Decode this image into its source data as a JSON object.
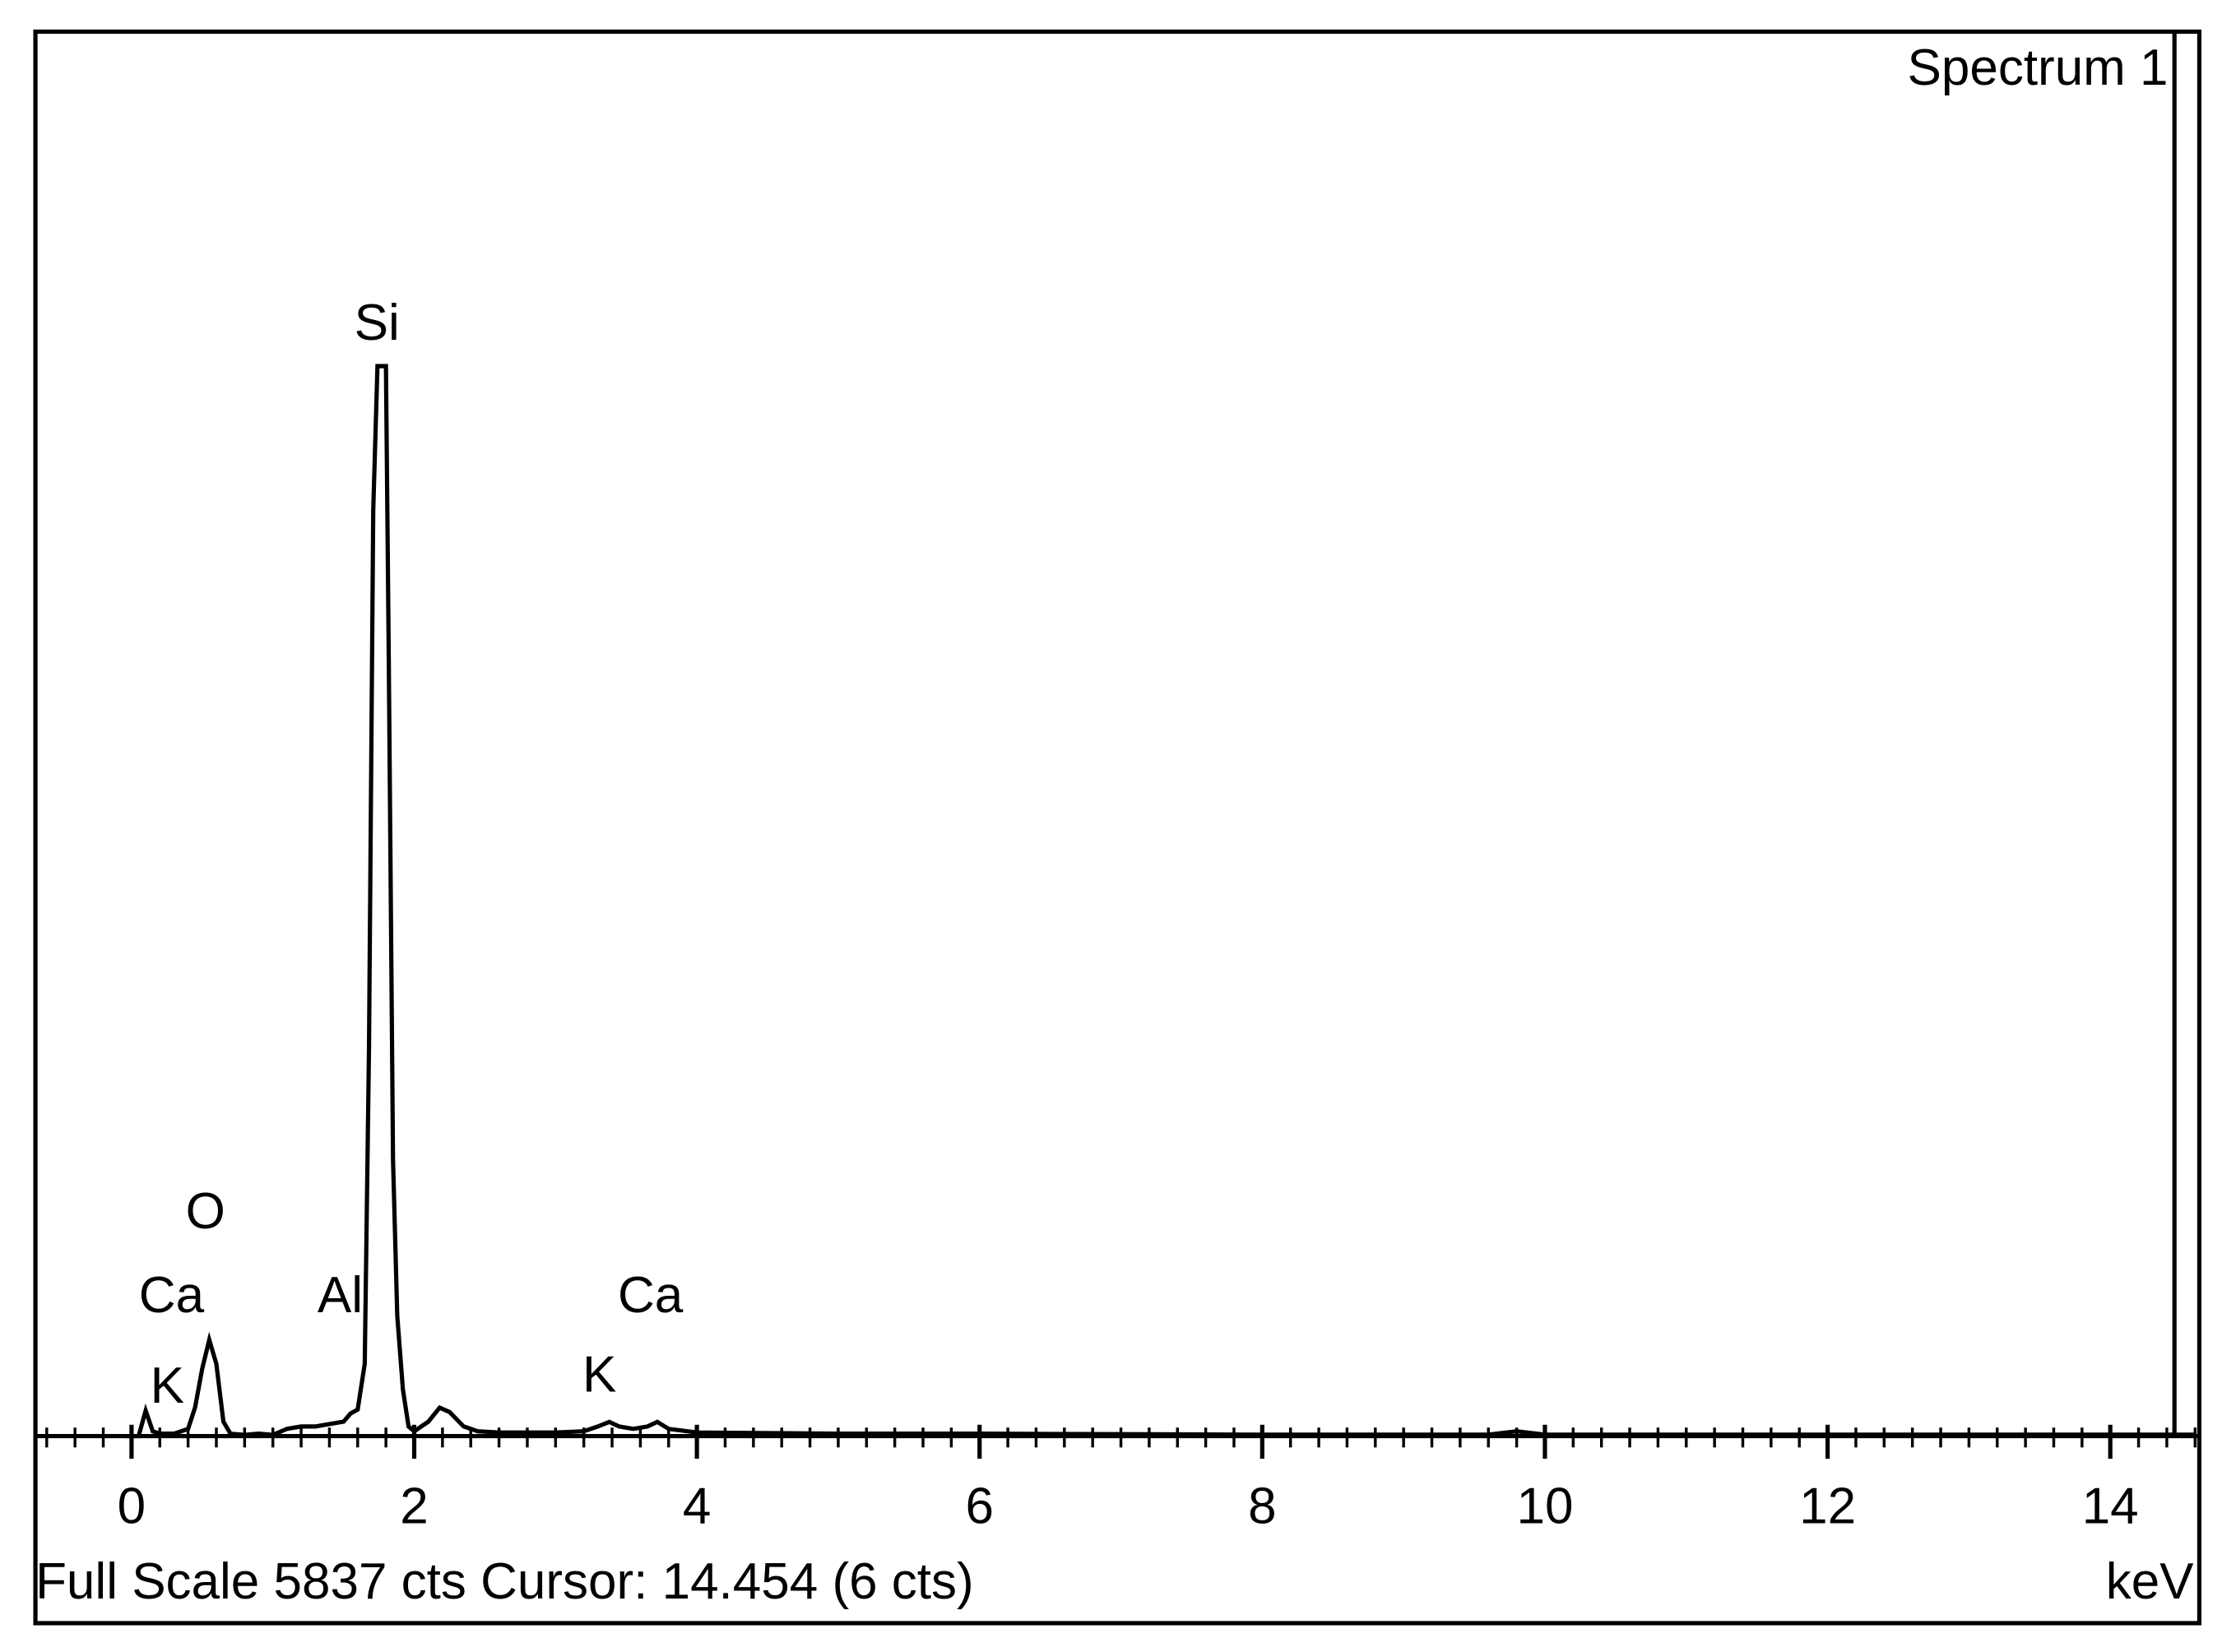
{
  "chart_data": {
    "type": "line",
    "label_text": "Spectrum 1",
    "footer": "Full Scale 5837 cts Cursor: 14.454  (6 cts)",
    "x_unit": "keV",
    "peak_labels": [
      "Si",
      "O",
      "Ca",
      "K",
      "Al",
      "Ca",
      "K"
    ],
    "x": [
      -0.05,
      0.05,
      0.1,
      0.15,
      0.2,
      0.3,
      0.4,
      0.45,
      0.5,
      0.55,
      0.6,
      0.65,
      0.7,
      0.8,
      0.9,
      1.0,
      1.1,
      1.2,
      1.3,
      1.4,
      1.5,
      1.55,
      1.6,
      1.65,
      1.68,
      1.71,
      1.74,
      1.77,
      1.8,
      1.82,
      1.85,
      1.88,
      1.92,
      1.96,
      2.0,
      2.1,
      2.18,
      2.25,
      2.35,
      2.45,
      2.6,
      2.8,
      3.0,
      3.2,
      3.3,
      3.38,
      3.45,
      3.55,
      3.65,
      3.72,
      3.8,
      4.0,
      5,
      6,
      7,
      8,
      9,
      9.6,
      9.8,
      10,
      11,
      12,
      13,
      14,
      14.6
    ],
    "values": [
      0,
      0,
      106,
      20,
      10,
      10,
      30,
      120,
      280,
      400,
      300,
      60,
      10,
      5,
      10,
      5,
      30,
      40,
      40,
      50,
      60,
      94,
      110,
      300,
      1608,
      3846,
      4447,
      4447,
      4447,
      3228,
      1149,
      500,
      194,
      40,
      20,
      60,
      118,
      100,
      40,
      20,
      15,
      15,
      15,
      20,
      40,
      59,
      40,
      30,
      40,
      59,
      30,
      15,
      10,
      10,
      8,
      6,
      6,
      6,
      20,
      6,
      6,
      6,
      6,
      6,
      6
    ],
    "color": "#000000",
    "cursor": 14.454,
    "xlim": [
      -0.68,
      14.63
    ],
    "ylim": [
      0,
      5837
    ],
    "xticks": [
      0,
      2,
      4,
      6,
      8,
      10,
      12,
      14
    ],
    "xminor_step": 0.2
  }
}
